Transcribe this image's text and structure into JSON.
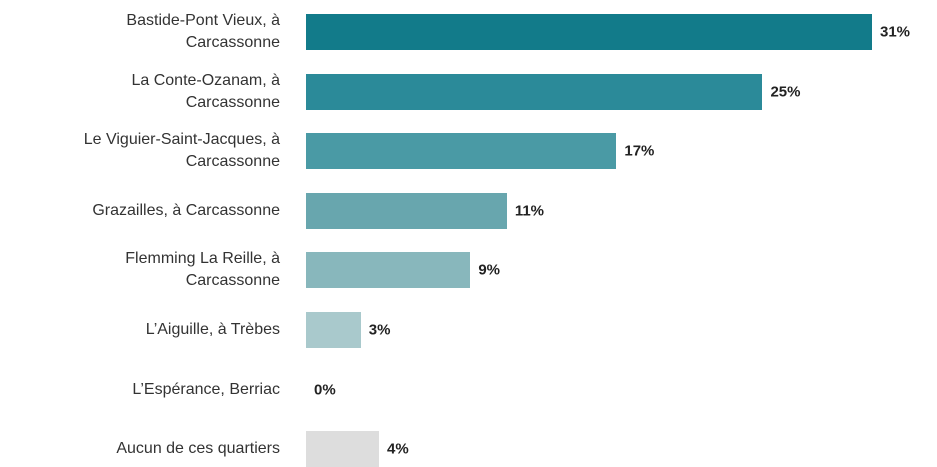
{
  "chart_data": {
    "type": "bar",
    "orientation": "horizontal",
    "categories": [
      "Bastide-Pont Vieux, à\nCarcassonne",
      "La Conte-Ozanam, à\nCarcassonne",
      "Le Viguier-Saint-Jacques, à\nCarcassonne",
      "Grazailles, à Carcassonne",
      "Flemming La Reille, à\nCarcassonne",
      "L’Aiguille, à Trèbes",
      "L’Espérance, Berriac",
      "Aucun de ces quartiers"
    ],
    "values": [
      31,
      25,
      17,
      11,
      9,
      3,
      0,
      4
    ],
    "value_labels": [
      "31%",
      "25%",
      "17%",
      "11%",
      "9%",
      "3%",
      "0%",
      "4%"
    ],
    "colors": [
      "#127b8a",
      "#2b8a99",
      "#4a9aa5",
      "#68a6ae",
      "#88b7bc",
      "#a9c9cc",
      "#cccccc",
      "#dddddd"
    ]
  }
}
